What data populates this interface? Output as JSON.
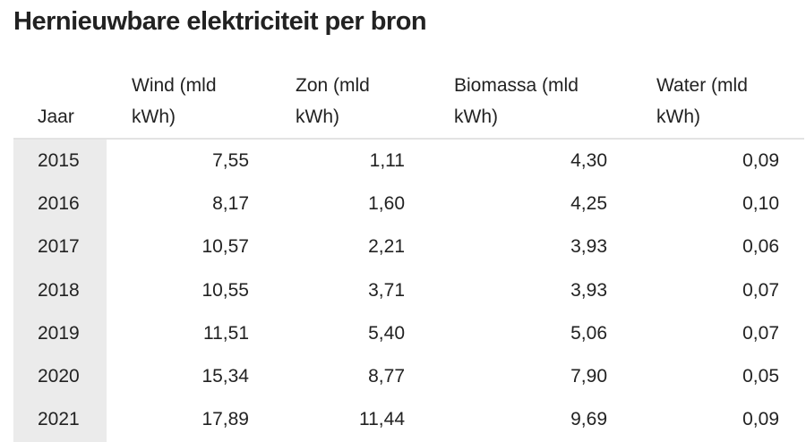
{
  "title": "Hernieuwbare elektriciteit per bron",
  "table": {
    "header": [
      "Jaar",
      "Wind (mld kWh)",
      "Zon (mld kWh)",
      "Biomassa (mld kWh)",
      "Water (mld kWh)"
    ],
    "rows": [
      [
        "2015",
        "7,55",
        "1,11",
        "4,30",
        "0,09"
      ],
      [
        "2016",
        "8,17",
        "1,60",
        "4,25",
        "0,10"
      ],
      [
        "2017",
        "10,57",
        "2,21",
        "3,93",
        "0,06"
      ],
      [
        "2018",
        "10,55",
        "3,71",
        "3,93",
        "0,07"
      ],
      [
        "2019",
        "11,51",
        "5,40",
        "5,06",
        "0,07"
      ],
      [
        "2020",
        "15,34",
        "8,77",
        "7,90",
        "0,05"
      ],
      [
        "2021",
        "17,89",
        "11,44",
        "9,69",
        "0,09"
      ]
    ]
  }
}
